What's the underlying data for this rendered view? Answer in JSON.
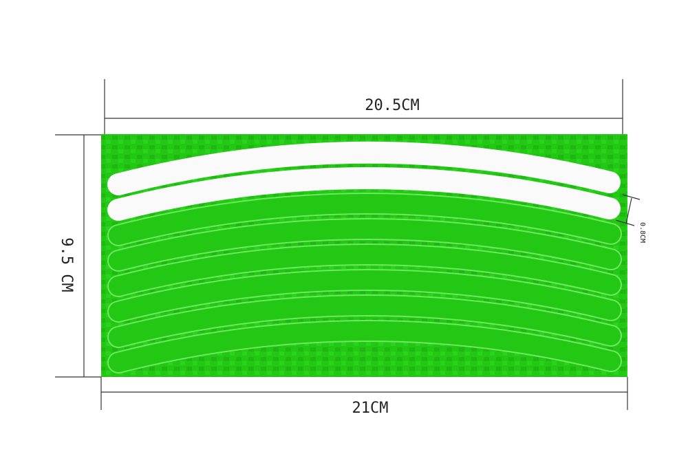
{
  "dimensions": {
    "top_width": "20.5CM",
    "height": "9.5 CM",
    "strip_width": "0.8CM",
    "bottom_width": "21CM"
  }
}
